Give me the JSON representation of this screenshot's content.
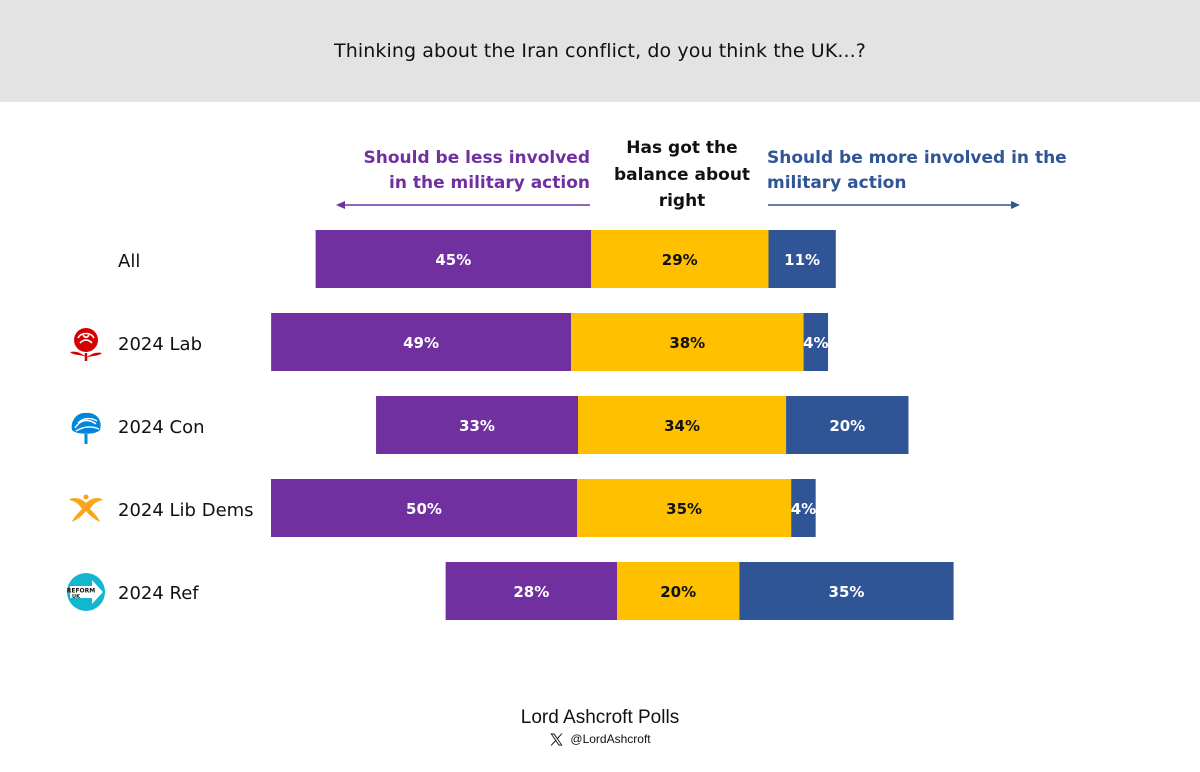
{
  "header": {
    "title": "Thinking about the Iran conflict, do you think the UK...?"
  },
  "categories": {
    "less": "Should be less involved in the military action",
    "middle": "Has got the balance about right",
    "more": "Should be more involved in the military action"
  },
  "colors": {
    "less": "#7030a0",
    "middle": "#ffc000",
    "more": "#2f5597",
    "header_bg": "#e3e3e3"
  },
  "chart_data": {
    "type": "bar",
    "orientation": "horizontal",
    "stacked": true,
    "title": "Thinking about the Iran conflict, do you think the UK...?",
    "categories": [
      "All",
      "2024 Lab",
      "2024 Con",
      "2024 Lib Dems",
      "2024 Ref"
    ],
    "series": [
      {
        "name": "Should be less involved in the military action",
        "values": [
          45,
          49,
          33,
          50,
          28
        ]
      },
      {
        "name": "Has got the balance about right",
        "values": [
          29,
          38,
          34,
          35,
          20
        ]
      },
      {
        "name": "Should be more involved in the military action",
        "values": [
          11,
          4,
          20,
          4,
          35
        ]
      }
    ],
    "value_suffix": "%"
  },
  "rows": [
    {
      "label": "All",
      "icon": ""
    },
    {
      "label": "2024 Lab",
      "icon": "labour-rose-icon"
    },
    {
      "label": "2024 Con",
      "icon": "conservative-tree-icon"
    },
    {
      "label": "2024 Lib Dems",
      "icon": "libdem-bird-icon"
    },
    {
      "label": "2024 Ref",
      "icon": "reform-uk-icon"
    }
  ],
  "reform_logo_text": {
    "line1": "REFORM",
    "line2": "UK"
  },
  "footer": {
    "title": "Lord Ashcroft Polls",
    "handle": "@LordAshcroft",
    "icon": "x-logo-icon"
  }
}
